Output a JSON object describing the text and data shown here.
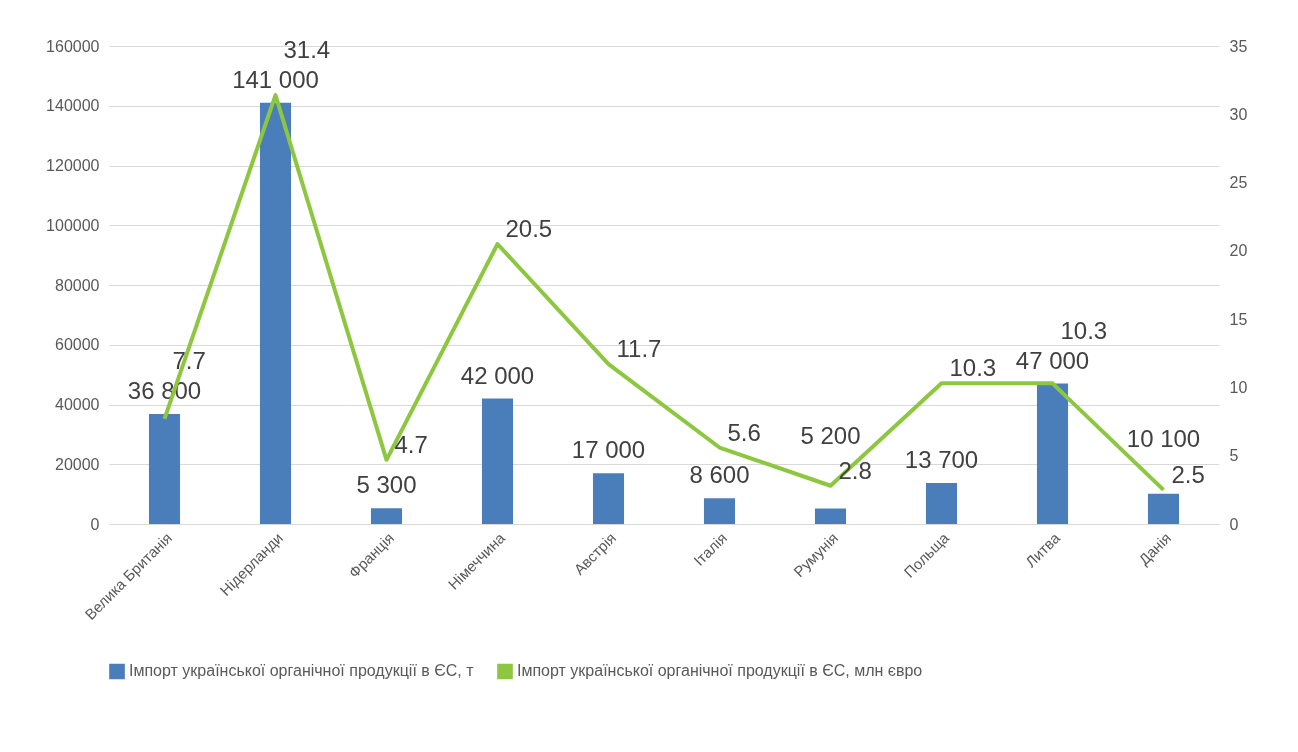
{
  "chart_data": {
    "type": "bar",
    "categories": [
      "Велика Британія",
      "Нідерланди",
      "Франція",
      "Німеччина",
      "Австрія",
      "Італія",
      "Румунія",
      "Польща",
      "Литва",
      "Данія"
    ],
    "series": [
      {
        "name": "Імпорт української органічної продукції в ЄС, т",
        "color": "#4a7ebb",
        "values": [
          36800,
          141000,
          5300,
          42000,
          17000,
          8600,
          5200,
          13700,
          47000,
          10100
        ],
        "value_labels": [
          "36 800",
          "141 000",
          "5 300",
          "42 000",
          "17 000",
          "8 600",
          "5 200",
          "13 700",
          "47 000",
          "10 100"
        ]
      },
      {
        "name": "Імпорт української органічної продукції в ЄС, млн євро",
        "type": "line",
        "axis": "y2",
        "color": "#8dc63f",
        "line_style": "solid",
        "values": [
          7.7,
          31.4,
          4.7,
          20.5,
          11.7,
          5.6,
          2.8,
          10.3,
          10.3,
          2.5
        ],
        "value_labels": [
          "7.7",
          "31.4",
          "4.7",
          "20.5",
          "11.7",
          "5.6",
          "2.8",
          "10.3",
          "10.3",
          "2.5"
        ]
      }
    ],
    "ylim": [
      0,
      160000
    ],
    "yticks": [
      0,
      20000,
      40000,
      60000,
      80000,
      100000,
      120000,
      140000,
      160000
    ],
    "y2lim": [
      0,
      35
    ],
    "y2ticks": [
      0,
      5,
      10,
      15,
      20,
      25,
      30,
      35
    ],
    "grid": "y",
    "legend": "bottom"
  }
}
